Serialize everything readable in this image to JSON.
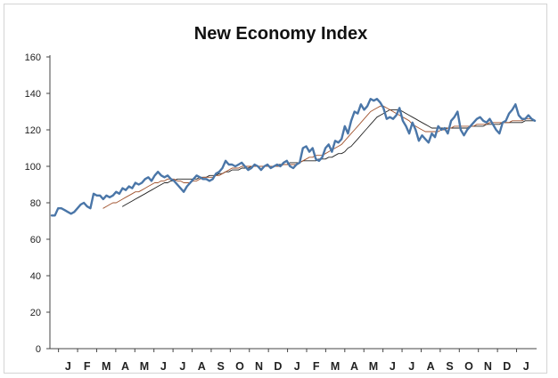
{
  "chart_data": {
    "type": "line",
    "title": "New Economy Index",
    "xlabel": "",
    "ylabel": "",
    "ylim": [
      0,
      160
    ],
    "yticks": [
      "0",
      "20",
      "40",
      "60",
      "80",
      "100",
      "120",
      "140",
      "160"
    ],
    "month_labels": [
      "J",
      "F",
      "M",
      "A",
      "M",
      "J",
      "J",
      "A",
      "S",
      "O",
      "N",
      "D",
      "J",
      "F",
      "M",
      "A",
      "M",
      "J",
      "J",
      "A",
      "S",
      "O",
      "N",
      "D",
      "J"
    ],
    "grid": false,
    "legend": "none",
    "series": [
      {
        "color": "#4a76a8",
        "role": "index",
        "values": [
          73,
          73,
          77,
          77,
          76,
          75,
          74,
          75,
          77,
          79,
          80,
          78,
          77,
          85,
          84,
          84,
          82,
          84,
          83,
          84,
          86,
          85,
          88,
          87,
          89,
          88,
          91,
          90,
          91,
          93,
          94,
          92,
          95,
          97,
          95,
          94,
          95,
          93,
          92,
          90,
          88,
          86,
          89,
          91,
          93,
          95,
          94,
          93,
          93,
          92,
          93,
          96,
          97,
          99,
          103,
          101,
          101,
          100,
          101,
          102,
          100,
          98,
          99,
          101,
          100,
          98,
          100,
          101,
          99,
          100,
          101,
          100,
          102,
          103,
          100,
          99,
          101,
          102,
          110,
          111,
          108,
          110,
          104,
          103,
          105,
          110,
          112,
          108,
          114,
          113,
          115,
          122,
          118,
          125,
          130,
          129,
          134,
          131,
          133,
          137,
          136,
          137,
          135,
          132,
          126,
          127,
          126,
          128,
          132,
          125,
          122,
          118,
          124,
          120,
          114,
          117,
          115,
          113,
          118,
          116,
          122,
          120,
          121,
          118,
          125,
          127,
          130,
          120,
          117,
          120,
          122,
          124,
          126,
          127,
          125,
          124,
          126,
          123,
          120,
          118,
          124,
          125,
          129,
          131,
          134,
          128,
          126,
          126,
          128,
          126,
          125
        ]
      },
      {
        "color": "#a0522d",
        "role": "moving-average-short",
        "values": [
          null,
          null,
          null,
          null,
          null,
          null,
          null,
          null,
          null,
          null,
          null,
          null,
          null,
          null,
          null,
          null,
          77,
          78,
          79,
          80,
          80,
          81,
          82,
          83,
          84,
          85,
          86,
          86,
          87,
          88,
          89,
          90,
          91,
          91,
          92,
          92,
          93,
          93,
          93,
          92,
          92,
          91,
          91,
          91,
          92,
          92,
          93,
          94,
          94,
          94,
          94,
          95,
          95,
          96,
          97,
          98,
          99,
          99,
          99,
          100,
          100,
          100,
          100,
          100,
          100,
          100,
          100,
          100,
          100,
          100,
          100,
          100,
          101,
          101,
          101,
          101,
          101,
          102,
          103,
          104,
          105,
          105,
          106,
          106,
          106,
          107,
          108,
          109,
          110,
          111,
          112,
          114,
          116,
          118,
          120,
          122,
          124,
          126,
          128,
          130,
          131,
          132,
          133,
          133,
          132,
          131,
          130,
          129,
          128,
          127,
          126,
          125,
          123,
          122,
          121,
          120,
          119,
          119,
          119,
          119,
          119,
          120,
          120,
          121,
          121,
          122,
          122,
          122,
          122,
          122,
          122,
          122,
          123,
          123,
          123,
          123,
          124,
          124,
          124,
          124,
          124,
          124,
          124,
          125,
          125,
          125,
          125,
          126,
          126,
          126,
          125
        ]
      },
      {
        "color": "#222222",
        "role": "moving-average-long",
        "values": [
          null,
          null,
          null,
          null,
          null,
          null,
          null,
          null,
          null,
          null,
          null,
          null,
          null,
          null,
          null,
          null,
          null,
          null,
          null,
          null,
          null,
          null,
          78,
          79,
          80,
          81,
          82,
          83,
          84,
          85,
          86,
          87,
          88,
          89,
          90,
          91,
          91,
          92,
          92,
          93,
          93,
          93,
          93,
          93,
          93,
          93,
          94,
          94,
          94,
          95,
          95,
          95,
          96,
          96,
          97,
          97,
          98,
          98,
          98,
          99,
          99,
          99,
          100,
          100,
          100,
          100,
          100,
          100,
          100,
          100,
          101,
          101,
          101,
          101,
          102,
          102,
          102,
          102,
          103,
          103,
          103,
          103,
          103,
          104,
          104,
          104,
          105,
          105,
          106,
          107,
          107,
          108,
          110,
          111,
          113,
          115,
          117,
          119,
          121,
          123,
          125,
          127,
          128,
          129,
          130,
          131,
          131,
          131,
          131,
          130,
          129,
          128,
          127,
          126,
          125,
          124,
          123,
          122,
          121,
          121,
          121,
          121,
          121,
          121,
          121,
          121,
          121,
          121,
          121,
          121,
          122,
          122,
          122,
          122,
          122,
          123,
          123,
          123,
          123,
          123,
          124,
          124,
          124,
          124,
          124,
          124,
          124,
          125,
          125,
          125,
          125
        ]
      }
    ]
  }
}
